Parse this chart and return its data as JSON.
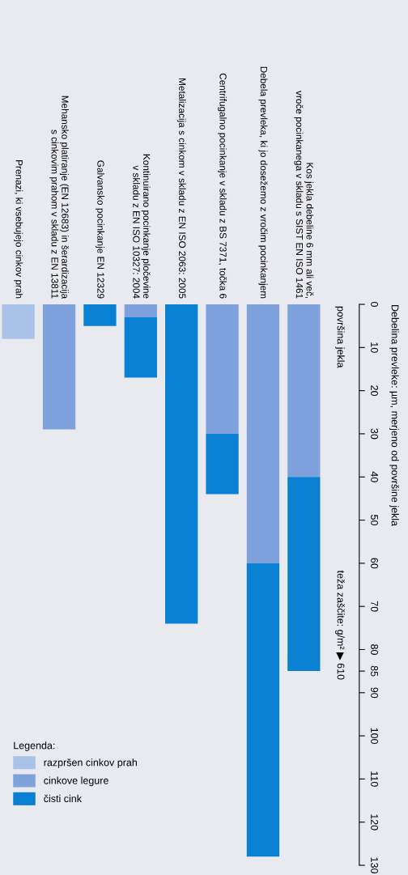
{
  "chart_data": {
    "type": "bar",
    "stacked": true,
    "ylabel": "Debelina prevleke: µm, merjeno od površine jekla",
    "legend_title": "Legenda:",
    "legend": "bottom left",
    "categories": [
      "Prenazi, ki vsebujejo cinkov prah",
      "Mehansko platiranje (EN 12683) in šerardizacija\ns cinkovim prahom v skladu z EN 13811",
      "Galvansko pocinkanje EN 12329",
      "Kontinuirano pocinkanje pločevine\nv skladu z EN ISO 10327: 2004",
      "Metalizacija s cinkom v skladu z EN ISO 2063: 2005",
      "Centrifugalno pocinkanje v skladu z BS 7371, točka 6",
      "Debela prevleka, ki jo dosežemo z vročim pocinkanjem",
      "Kos jekla debeline 6 mm ali več,\nvroče pocinkanega v skladu s SIST EN ISO 1461"
    ],
    "series": [
      {
        "name": "razpršen cinkov prah",
        "color": "#aac2e8",
        "values": [
          8,
          null,
          null,
          null,
          null,
          null,
          null,
          null
        ]
      },
      {
        "name": "cinkove legure",
        "color": "#7fa2dc",
        "values": [
          null,
          29,
          null,
          3,
          null,
          30,
          60,
          40
        ]
      },
      {
        "name": "čisti cink",
        "color": "#0a80d2",
        "values": [
          null,
          null,
          5,
          14,
          74,
          14,
          68,
          45
        ]
      }
    ],
    "ylim": [
      130,
      0
    ],
    "yticks": [
      0,
      10,
      20,
      30,
      40,
      50,
      60,
      70,
      80,
      85,
      90,
      100,
      110,
      120,
      130
    ],
    "grid": false,
    "annotations": [
      "površina jekla",
      "teža zaščite: g/m² ▶ 610"
    ]
  }
}
